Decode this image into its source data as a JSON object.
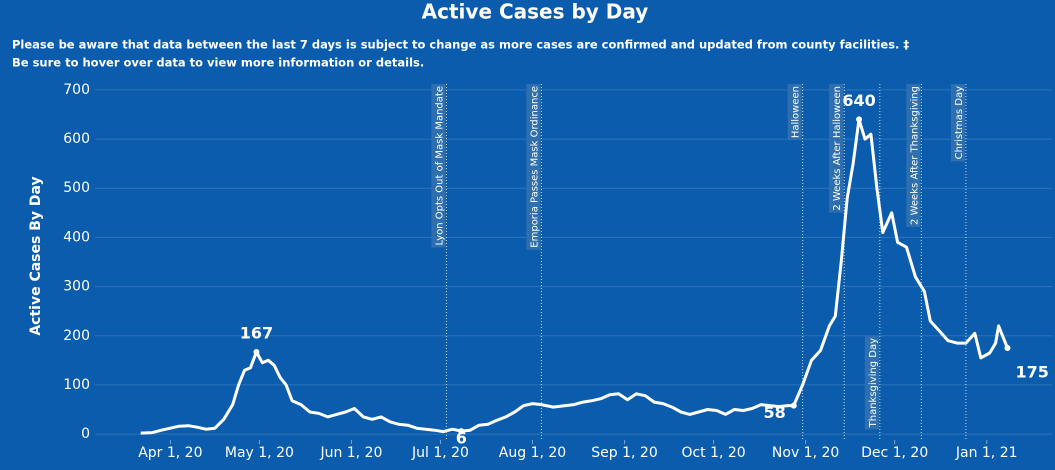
{
  "chart_data": {
    "type": "line",
    "title": "Active Cases by Day",
    "subtitle": [
      "Please be aware that data between the last 7 days is subject to change as more cases are confirmed and updated from county facilities. ‡",
      "Be sure to hover over data to view more information or details."
    ],
    "y_label": "Active Cases By Day",
    "xlim": [
      "2020-03-11",
      "2021-01-23"
    ],
    "ylim": [
      -12,
      712
    ],
    "yticks": [
      0,
      100,
      200,
      300,
      400,
      500,
      600,
      700
    ],
    "xticks": [
      {
        "value": "2020-04-01",
        "label": "Apr 1, 20"
      },
      {
        "value": "2020-05-01",
        "label": "May 1, 20"
      },
      {
        "value": "2020-06-01",
        "label": "Jun 1, 20"
      },
      {
        "value": "2020-07-01",
        "label": "Jul 1, 20"
      },
      {
        "value": "2020-08-01",
        "label": "Aug 1, 20"
      },
      {
        "value": "2020-09-01",
        "label": "Sep 1, 20"
      },
      {
        "value": "2020-10-01",
        "label": "Oct 1, 20"
      },
      {
        "value": "2020-11-01",
        "label": "Nov 1, 20"
      },
      {
        "value": "2020-12-01",
        "label": "Dec 1, 20"
      },
      {
        "value": "2021-01-01",
        "label": "Jan 1, 21"
      }
    ],
    "grid": true,
    "x": [
      "2020-03-22",
      "2020-03-26",
      "2020-03-29",
      "2020-04-01",
      "2020-04-04",
      "2020-04-07",
      "2020-04-10",
      "2020-04-13",
      "2020-04-16",
      "2020-04-19",
      "2020-04-22",
      "2020-04-24",
      "2020-04-26",
      "2020-04-28",
      "2020-04-30",
      "2020-05-02",
      "2020-05-04",
      "2020-05-06",
      "2020-05-08",
      "2020-05-10",
      "2020-05-12",
      "2020-05-15",
      "2020-05-18",
      "2020-05-21",
      "2020-05-24",
      "2020-05-27",
      "2020-05-30",
      "2020-06-02",
      "2020-06-05",
      "2020-06-08",
      "2020-06-11",
      "2020-06-14",
      "2020-06-17",
      "2020-06-20",
      "2020-06-23",
      "2020-06-26",
      "2020-06-29",
      "2020-07-02",
      "2020-07-05",
      "2020-07-08",
      "2020-07-11",
      "2020-07-14",
      "2020-07-17",
      "2020-07-20",
      "2020-07-23",
      "2020-07-26",
      "2020-07-29",
      "2020-08-01",
      "2020-08-04",
      "2020-08-08",
      "2020-08-12",
      "2020-08-15",
      "2020-08-18",
      "2020-08-21",
      "2020-08-24",
      "2020-08-27",
      "2020-08-30",
      "2020-09-02",
      "2020-09-05",
      "2020-09-08",
      "2020-09-11",
      "2020-09-14",
      "2020-09-17",
      "2020-09-20",
      "2020-09-23",
      "2020-09-26",
      "2020-09-29",
      "2020-10-02",
      "2020-10-05",
      "2020-10-08",
      "2020-10-11",
      "2020-10-14",
      "2020-10-17",
      "2020-10-20",
      "2020-10-23",
      "2020-10-26",
      "2020-10-28",
      "2020-10-31",
      "2020-11-03",
      "2020-11-06",
      "2020-11-09",
      "2020-11-11",
      "2020-11-13",
      "2020-11-15",
      "2020-11-17",
      "2020-11-19",
      "2020-11-21",
      "2020-11-23",
      "2020-11-25",
      "2020-11-27",
      "2020-11-30",
      "2020-12-02",
      "2020-12-05",
      "2020-12-08",
      "2020-12-11",
      "2020-12-13",
      "2020-12-16",
      "2020-12-19",
      "2020-12-22",
      "2020-12-25",
      "2020-12-28",
      "2020-12-30",
      "2021-01-02",
      "2021-01-04",
      "2021-01-05",
      "2021-01-07",
      "2021-01-08"
    ],
    "series": [
      {
        "name": "Active Cases",
        "color": "#ffffff",
        "values": [
          2,
          3,
          8,
          12,
          16,
          17,
          14,
          10,
          12,
          30,
          60,
          100,
          130,
          135,
          167,
          145,
          150,
          140,
          115,
          100,
          68,
          60,
          45,
          42,
          35,
          40,
          45,
          52,
          35,
          30,
          35,
          25,
          20,
          18,
          12,
          10,
          8,
          5,
          10,
          6,
          8,
          18,
          20,
          28,
          35,
          45,
          58,
          62,
          60,
          55,
          58,
          60,
          65,
          68,
          72,
          80,
          82,
          70,
          82,
          78,
          65,
          62,
          55,
          45,
          40,
          45,
          50,
          48,
          40,
          50,
          48,
          52,
          60,
          58,
          56,
          58,
          58,
          100,
          150,
          170,
          220,
          240,
          350,
          480,
          550,
          640,
          600,
          610,
          500,
          410,
          450,
          390,
          380,
          320,
          290,
          230,
          210,
          190,
          185,
          185,
          205,
          155,
          165,
          185,
          220,
          190,
          175
        ]
      }
    ],
    "labeled_points": [
      "2020-04-30",
      "2020-07-08",
      "2020-10-28",
      "2020-11-19",
      "2021-01-08"
    ],
    "events": [
      {
        "date": "2020-07-03",
        "label": "Lyon Opts Out of Mask Mandate",
        "position": "top"
      },
      {
        "date": "2020-08-04",
        "label": "Emporia Passes Mask Ordinance",
        "position": "top"
      },
      {
        "date": "2020-10-31",
        "label": "Halloween",
        "position": "top"
      },
      {
        "date": "2020-11-14",
        "label": "2 Weeks After Halloween",
        "position": "top"
      },
      {
        "date": "2020-11-26",
        "label": "Thanksgiving Day",
        "position": "bottom"
      },
      {
        "date": "2020-12-10",
        "label": "2 Weeks After Thanksgiving",
        "position": "top"
      },
      {
        "date": "2020-12-25",
        "label": "Christmas Day",
        "position": "top"
      }
    ]
  }
}
